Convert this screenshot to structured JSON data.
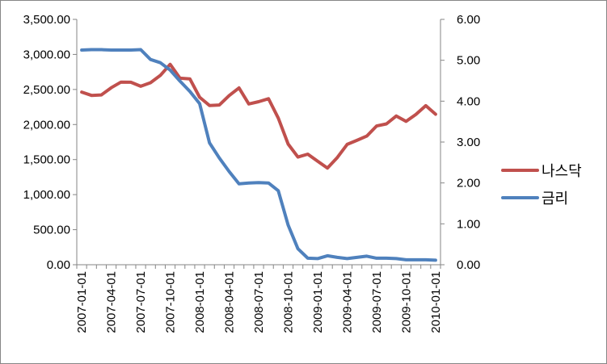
{
  "chart_data": {
    "type": "line",
    "title": "",
    "xlabel": "",
    "ylabel": "",
    "grid": false,
    "legend_position": "right",
    "y_left": {
      "range": [
        0,
        3500
      ],
      "ticks": [
        0,
        500,
        1000,
        1500,
        2000,
        2500,
        3000,
        3500
      ],
      "tick_labels": [
        "0.00",
        "500.00",
        "1,000.00",
        "1,500.00",
        "2,000.00",
        "2,500.00",
        "3,000.00",
        "3,500.00"
      ]
    },
    "y_right": {
      "range": [
        0,
        6
      ],
      "ticks": [
        0,
        1,
        2,
        3,
        4,
        5,
        6
      ],
      "tick_labels": [
        "0.00",
        "1.00",
        "2.00",
        "3.00",
        "4.00",
        "5.00",
        "6.00"
      ]
    },
    "x_tick_labels": [
      "2007-01-01",
      "2007-04-01",
      "2007-07-01",
      "2007-10-01",
      "2008-01-01",
      "2008-04-01",
      "2008-07-01",
      "2008-10-01",
      "2009-01-01",
      "2009-04-01",
      "2009-07-01",
      "2009-10-01",
      "2010-01-01"
    ],
    "x": [
      "2007-01-01",
      "2007-02-01",
      "2007-03-01",
      "2007-04-01",
      "2007-05-01",
      "2007-06-01",
      "2007-07-01",
      "2007-08-01",
      "2007-09-01",
      "2007-10-01",
      "2007-11-01",
      "2007-12-01",
      "2008-01-01",
      "2008-02-01",
      "2008-03-01",
      "2008-04-01",
      "2008-05-01",
      "2008-06-01",
      "2008-07-01",
      "2008-08-01",
      "2008-09-01",
      "2008-10-01",
      "2008-11-01",
      "2008-12-01",
      "2009-01-01",
      "2009-02-01",
      "2009-03-01",
      "2009-04-01",
      "2009-05-01",
      "2009-06-01",
      "2009-07-01",
      "2009-08-01",
      "2009-09-01",
      "2009-10-01",
      "2009-11-01",
      "2009-12-01",
      "2010-01-01"
    ],
    "series": [
      {
        "name": "나스닥",
        "axis": "left",
        "color": "#c0504d",
        "values": [
          2463,
          2416,
          2422,
          2525,
          2605,
          2603,
          2546,
          2596,
          2701,
          2859,
          2661,
          2652,
          2389,
          2271,
          2279,
          2413,
          2523,
          2293,
          2326,
          2368,
          2092,
          1721,
          1536,
          1577,
          1476,
          1378,
          1529,
          1717,
          1774,
          1835,
          1979,
          2009,
          2122,
          2045,
          2145,
          2269,
          2147
        ]
      },
      {
        "name": "금리",
        "axis": "right",
        "color": "#4f81bd",
        "values": [
          5.25,
          5.26,
          5.26,
          5.25,
          5.25,
          5.25,
          5.26,
          5.02,
          4.94,
          4.76,
          4.49,
          4.24,
          3.94,
          2.98,
          2.61,
          2.28,
          1.98,
          2.0,
          2.01,
          2.0,
          1.81,
          0.97,
          0.39,
          0.16,
          0.15,
          0.22,
          0.18,
          0.15,
          0.18,
          0.21,
          0.16,
          0.16,
          0.15,
          0.12,
          0.12,
          0.12,
          0.11
        ]
      }
    ]
  }
}
